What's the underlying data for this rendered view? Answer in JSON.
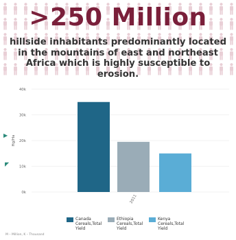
{
  "header": {
    "headline": ">250 Million",
    "subtitle": "hillside inhabitants predominantly located in the mountains of east and northeast Africa which is highly susceptible to erosion."
  },
  "icons": {
    "background": "person-icon"
  },
  "colors": {
    "people": "#e9cfd6",
    "headline": "#7a1f3a"
  },
  "chart_data": {
    "type": "bar",
    "categories": [
      "2011"
    ],
    "series": [
      {
        "name": "Canada Cereals,Total Yield",
        "values": [
          35000
        ],
        "color": "#1f6687"
      },
      {
        "name": "Ethiopia Cereals,Total Yield",
        "values": [
          19500
        ],
        "color": "#9aacb7"
      },
      {
        "name": "Kenya Cereals,Total Yield",
        "values": [
          15000
        ],
        "color": "#5aadd6"
      }
    ],
    "ylabel": "Hg/Ha",
    "ylim": [
      0,
      40000
    ],
    "yticks": [
      {
        "value": 0,
        "label": "0k"
      },
      {
        "value": 10000,
        "label": "10k"
      },
      {
        "value": 20000,
        "label": "20k"
      },
      {
        "value": 30000,
        "label": "30k"
      },
      {
        "value": 40000,
        "label": "40k"
      }
    ],
    "grid": true,
    "legend_position": "bottom"
  },
  "legend": [
    {
      "line1": "Canada",
      "line2": "Cereals,Total",
      "line3": "Yield"
    },
    {
      "line1": "Ethiopia",
      "line2": "Cereals,Total",
      "line3": "Yield"
    },
    {
      "line1": "Kenya",
      "line2": "Cereals,Total",
      "line3": "Yield"
    }
  ],
  "footnote": "M – Million, K – Thousand"
}
